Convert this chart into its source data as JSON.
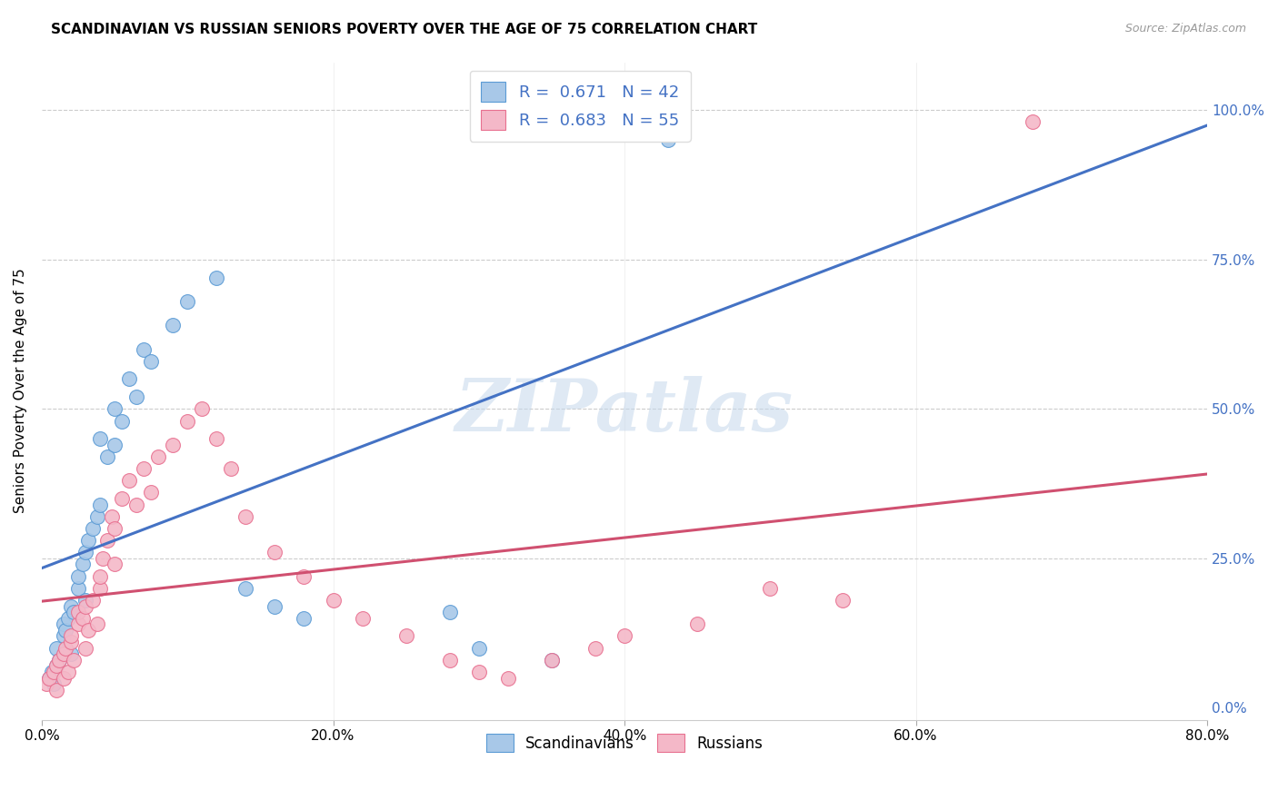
{
  "title": "SCANDINAVIAN VS RUSSIAN SENIORS POVERTY OVER THE AGE OF 75 CORRELATION CHART",
  "source": "Source: ZipAtlas.com",
  "ylabel": "Seniors Poverty Over the Age of 75",
  "watermark": "ZIPatlas",
  "blue_R": "0.671",
  "blue_N": "42",
  "pink_R": "0.683",
  "pink_N": "55",
  "blue_fill": "#A8C8E8",
  "blue_edge": "#5B9BD5",
  "pink_fill": "#F4B8C8",
  "pink_edge": "#E87090",
  "blue_line": "#4472C4",
  "pink_line": "#D05070",
  "legend_blue": "Scandinavians",
  "legend_pink": "Russians",
  "xmin": 0.0,
  "xmax": 0.8,
  "ymin": -0.02,
  "ymax": 1.08,
  "scan_x": [
    0.005,
    0.007,
    0.008,
    0.01,
    0.01,
    0.012,
    0.015,
    0.015,
    0.016,
    0.018,
    0.02,
    0.02,
    0.022,
    0.025,
    0.025,
    0.028,
    0.03,
    0.03,
    0.032,
    0.035,
    0.038,
    0.04,
    0.04,
    0.045,
    0.05,
    0.05,
    0.055,
    0.06,
    0.065,
    0.07,
    0.075,
    0.09,
    0.1,
    0.12,
    0.14,
    0.16,
    0.18,
    0.28,
    0.3,
    0.35,
    0.38,
    0.43
  ],
  "scan_y": [
    0.05,
    0.06,
    0.04,
    0.07,
    0.1,
    0.08,
    0.12,
    0.14,
    0.13,
    0.15,
    0.09,
    0.17,
    0.16,
    0.2,
    0.22,
    0.24,
    0.18,
    0.26,
    0.28,
    0.3,
    0.32,
    0.34,
    0.45,
    0.42,
    0.44,
    0.5,
    0.48,
    0.55,
    0.52,
    0.6,
    0.58,
    0.64,
    0.68,
    0.72,
    0.2,
    0.17,
    0.15,
    0.16,
    0.1,
    0.08,
    0.97,
    0.95
  ],
  "rus_x": [
    0.003,
    0.005,
    0.008,
    0.01,
    0.01,
    0.012,
    0.015,
    0.015,
    0.016,
    0.018,
    0.02,
    0.02,
    0.022,
    0.025,
    0.025,
    0.028,
    0.03,
    0.03,
    0.032,
    0.035,
    0.038,
    0.04,
    0.04,
    0.042,
    0.045,
    0.048,
    0.05,
    0.05,
    0.055,
    0.06,
    0.065,
    0.07,
    0.075,
    0.08,
    0.09,
    0.1,
    0.11,
    0.12,
    0.13,
    0.14,
    0.16,
    0.18,
    0.2,
    0.22,
    0.25,
    0.28,
    0.3,
    0.32,
    0.35,
    0.38,
    0.4,
    0.45,
    0.5,
    0.55,
    0.68
  ],
  "rus_y": [
    0.04,
    0.05,
    0.06,
    0.03,
    0.07,
    0.08,
    0.05,
    0.09,
    0.1,
    0.06,
    0.11,
    0.12,
    0.08,
    0.14,
    0.16,
    0.15,
    0.1,
    0.17,
    0.13,
    0.18,
    0.14,
    0.2,
    0.22,
    0.25,
    0.28,
    0.32,
    0.24,
    0.3,
    0.35,
    0.38,
    0.34,
    0.4,
    0.36,
    0.42,
    0.44,
    0.48,
    0.5,
    0.45,
    0.4,
    0.32,
    0.26,
    0.22,
    0.18,
    0.15,
    0.12,
    0.08,
    0.06,
    0.05,
    0.08,
    0.1,
    0.12,
    0.14,
    0.2,
    0.18,
    0.98
  ]
}
